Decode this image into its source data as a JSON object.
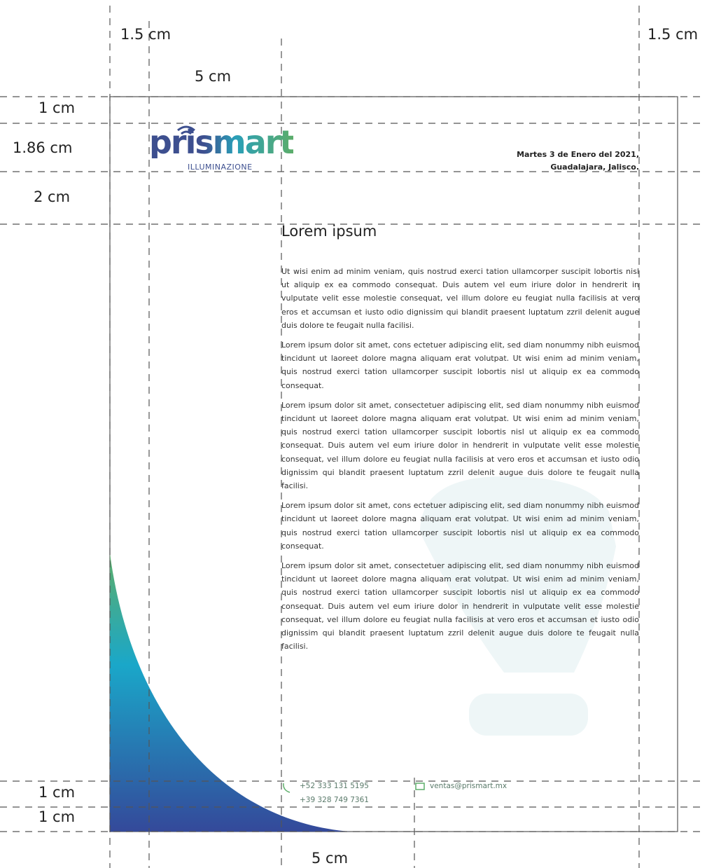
{
  "dimensions": [
    "1.5 cm",
    "1.5 cm",
    "5 cm",
    "1 cm",
    "1.86 cm",
    "2 cm",
    "1 cm",
    "1 cm",
    "5 cm"
  ],
  "logo": {
    "name": "prismart",
    "tagline": "ILLUMINAZIONE"
  },
  "header": {
    "date": "Martes 3 de Enero del 2021,",
    "place": "Guadalajara, Jalisco."
  },
  "body": {
    "title": "Lorem ipsum",
    "paragraphs": [
      "Ut wisi enim ad minim veniam, quis nostrud exerci tation ullamcorper suscipit lobortis nisl ut aliquip ex ea commodo consequat. Duis autem vel eum iriure dolor in hendrerit in vulputate velit esse molestie consequat, vel illum dolore eu feugiat nulla facilisis at vero eros et accumsan et iusto odio dignissim qui blandit praesent luptatum zzril delenit augue duis dolore te feugait nulla facilisi.",
      "Lorem ipsum dolor sit amet, cons ectetuer adipiscing elit, sed diam nonummy nibh euismod tincidunt ut laoreet dolore magna aliquam erat volutpat. Ut wisi enim ad minim veniam, quis nostrud exerci tation ullamcorper suscipit lobortis nisl ut aliquip ex ea commodo consequat.",
      "Lorem ipsum dolor sit amet, consectetuer adipiscing elit, sed diam nonummy nibh euismod tincidunt ut laoreet dolore magna aliquam erat volutpat. Ut wisi enim ad minim veniam, quis nostrud exerci tation ullamcorper suscipit lobortis nisl ut aliquip ex ea commodo consequat. Duis autem vel eum iriure dolor in hendrerit in vulputate velit esse molestie consequat, vel illum dolore eu feugiat nulla facilisis at vero eros et accumsan et iusto odio dignissim qui blandit praesent luptatum zzril delenit augue duis dolore te feugait nulla facilisi.",
      "Lorem ipsum dolor sit amet, cons ectetuer adipiscing elit, sed diam nonummy nibh euismod tincidunt ut laoreet dolore magna aliquam erat volutpat. Ut wisi enim ad minim veniam, quis nostrud exerci tation ullamcorper suscipit lobortis nisl ut aliquip ex ea commodo consequat.",
      "Lorem ipsum dolor sit amet, consectetuer adipiscing elit, sed diam nonummy nibh euismod tincidunt ut laoreet dolore magna aliquam erat volutpat. Ut wisi enim ad minim veniam, quis nostrud exerci tation ullamcorper suscipit lobortis nisl ut aliquip ex ea commodo consequat. Duis autem vel eum iriure dolor in hendrerit in vulputate velit esse molestie consequat, vel illum dolore eu feugiat nulla facilisis at vero eros et accumsan et iusto odio dignissim qui blandit praesent luptatum zzril delenit augue duis dolore te feugait nulla facilisi."
    ]
  },
  "footer": {
    "phones": [
      "+52 333 131 5195",
      "+39 328 749 7361"
    ],
    "email": "ventas@prismart.mx"
  }
}
